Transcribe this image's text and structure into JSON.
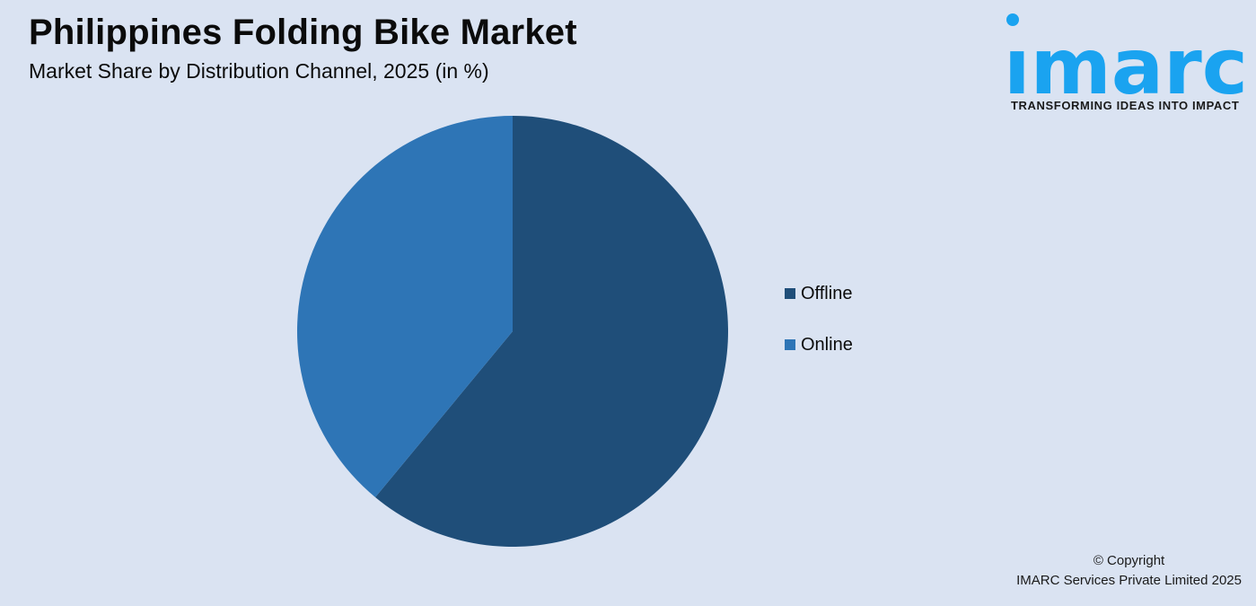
{
  "header": {
    "title": "Philippines Folding Bike Market",
    "subtitle": "Market Share by Distribution Channel, 2025 (in %)"
  },
  "logo": {
    "text": "imarc",
    "tagline": "TRANSFORMING IDEAS INTO IMPACT",
    "color": "#1aa3f0"
  },
  "legend": {
    "items": [
      {
        "label": "Offline",
        "color": "#1f4e79"
      },
      {
        "label": "Online",
        "color": "#2e75b6"
      }
    ]
  },
  "footer": {
    "line1": "© Copyright",
    "line2": "IMARC Services Private Limited 2025"
  },
  "chart_data": {
    "type": "pie",
    "title": "Philippines Folding Bike Market",
    "subtitle": "Market Share by Distribution Channel, 2025 (in %)",
    "categories": [
      "Offline",
      "Online"
    ],
    "values": [
      61,
      39
    ],
    "colors": [
      "#1f4e79",
      "#2e75b6"
    ],
    "start_angle": "12 o'clock, clockwise",
    "legend_position": "right",
    "data_labels": false
  }
}
